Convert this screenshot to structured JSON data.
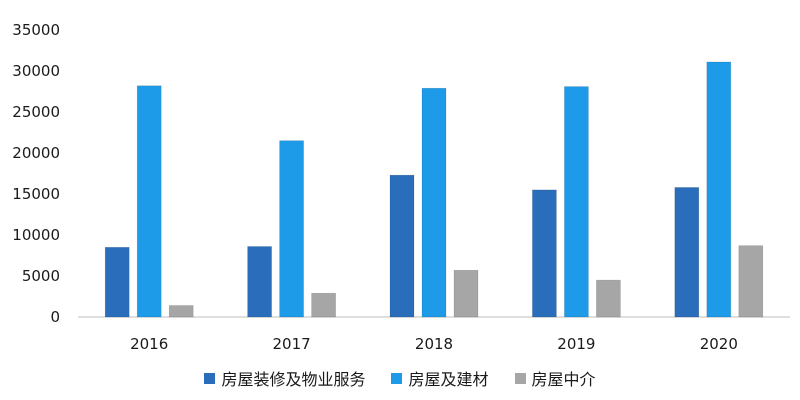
{
  "chart_data": {
    "type": "bar",
    "title": "",
    "xlabel": "",
    "ylabel": "",
    "categories": [
      "2016",
      "2017",
      "2018",
      "2019",
      "2020"
    ],
    "ylim": [
      0,
      35000
    ],
    "yticks": [
      0,
      5000,
      10000,
      15000,
      20000,
      25000,
      30000,
      35000
    ],
    "grid": false,
    "legend_position": "bottom",
    "series": [
      {
        "name": "房屋装修及物业服务",
        "color": "#2a6ebb",
        "values": [
          8500,
          8600,
          17300,
          15500,
          15800
        ]
      },
      {
        "name": "房屋及建材",
        "color": "#1e9be8",
        "values": [
          28200,
          21500,
          27900,
          28100,
          31100
        ]
      },
      {
        "name": "房屋中介",
        "color": "#a6a6a6",
        "values": [
          1400,
          2900,
          5700,
          4500,
          8700
        ]
      }
    ]
  }
}
